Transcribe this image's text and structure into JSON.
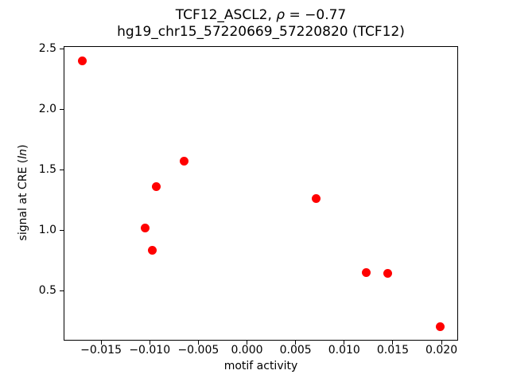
{
  "chart_data": {
    "type": "scatter",
    "title": {
      "line1_prefix": "TCF12_ASCL2, ",
      "line1_rho": "ρ",
      "line1_suffix": " = −0.77",
      "line2": "hg19_chr15_57220669_57220820 (TCF12)"
    },
    "xlabel": "motif activity",
    "ylabel": {
      "prefix": "signal at CRE (",
      "italic": "ln",
      "suffix": ")"
    },
    "marker_color": "#ff0000",
    "xlim": [
      -0.01885,
      0.02171
    ],
    "ylim": [
      0.086,
      2.52
    ],
    "grid": false,
    "legend": null,
    "xticks": [
      {
        "v": -0.015,
        "label": "−0.015"
      },
      {
        "v": -0.01,
        "label": "−0.010"
      },
      {
        "v": -0.005,
        "label": "−0.005"
      },
      {
        "v": 0.0,
        "label": "0.000"
      },
      {
        "v": 0.005,
        "label": "0.005"
      },
      {
        "v": 0.01,
        "label": "0.010"
      },
      {
        "v": 0.015,
        "label": "0.015"
      },
      {
        "v": 0.02,
        "label": "0.020"
      }
    ],
    "yticks": [
      {
        "v": 0.5,
        "label": "0.5"
      },
      {
        "v": 1.0,
        "label": "1.0"
      },
      {
        "v": 1.5,
        "label": "1.5"
      },
      {
        "v": 2.0,
        "label": "2.0"
      },
      {
        "v": 2.5,
        "label": "2.5"
      }
    ],
    "points": [
      {
        "x": -0.0169,
        "y": 2.4
      },
      {
        "x": -0.0065,
        "y": 1.57
      },
      {
        "x": -0.0093,
        "y": 1.36
      },
      {
        "x": -0.0105,
        "y": 1.02
      },
      {
        "x": -0.0097,
        "y": 0.83
      },
      {
        "x": 0.0071,
        "y": 1.26
      },
      {
        "x": 0.0123,
        "y": 0.65
      },
      {
        "x": 0.0145,
        "y": 0.64
      },
      {
        "x": 0.0199,
        "y": 0.2
      }
    ]
  }
}
